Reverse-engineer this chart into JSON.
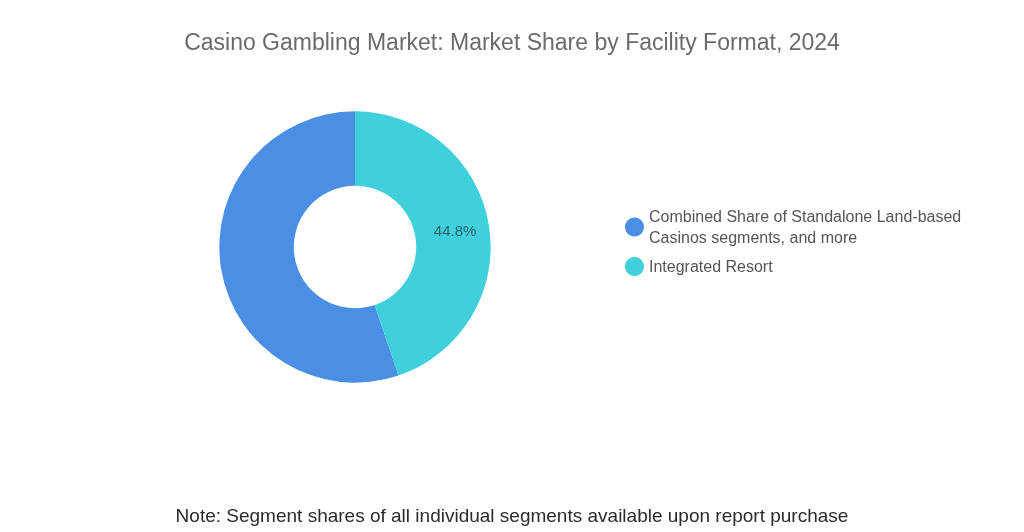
{
  "chart_data": {
    "type": "donut",
    "title": "Casino Gambling Market: Market Share by Facility Format, 2024",
    "categories": [
      "Combined Share of Standalone Land-based Casinos segments, and more",
      "Integrated Resort"
    ],
    "values": [
      55.2,
      44.8
    ],
    "colors": [
      "#4a8fe3",
      "#3fd0dc"
    ],
    "value_labels": [
      null,
      "44.8%"
    ],
    "legend": "right",
    "annotations": [
      "Note: Segment shares of all individual segments available upon report purchase"
    ]
  }
}
